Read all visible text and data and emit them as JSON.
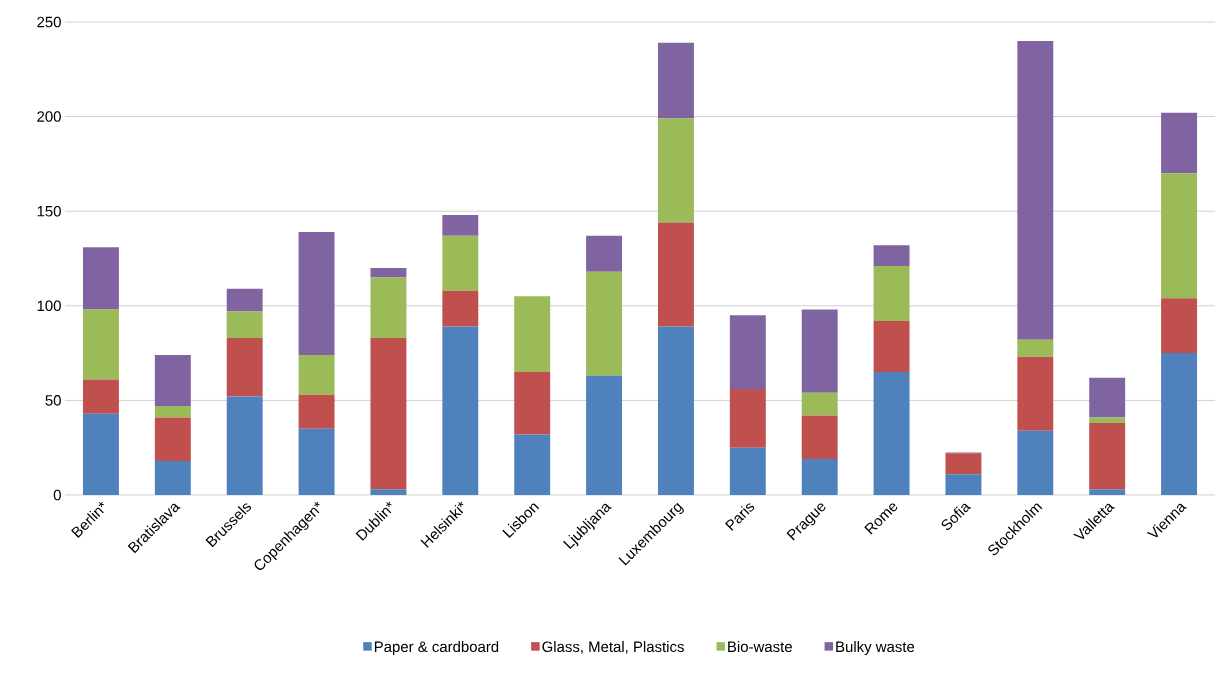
{
  "chart_data": {
    "type": "bar",
    "stacked": true,
    "categories": [
      "Berlin*",
      "Bratislava",
      "Brussels",
      "Copenhagen*",
      "Dublin*",
      "Helsinki*",
      "Lisbon",
      "Ljubljana",
      "Luxembourg",
      "Paris",
      "Prague",
      "Rome",
      "Sofia",
      "Stockholm",
      "Valletta",
      "Vienna"
    ],
    "series": [
      {
        "name": "Paper & cardboard",
        "color": "#4f81bd",
        "values": [
          43,
          18,
          52,
          35,
          3,
          89,
          32,
          63,
          89,
          25,
          19,
          65,
          11,
          34,
          3,
          75
        ]
      },
      {
        "name": "Glass, Metal, Plastics",
        "color": "#c0504d",
        "values": [
          18,
          23,
          31,
          18,
          80,
          19,
          33,
          0,
          55,
          31,
          23,
          27,
          11,
          39,
          35,
          29
        ]
      },
      {
        "name": "Bio-waste",
        "color": "#9bbb59",
        "values": [
          37,
          6,
          14,
          21,
          32,
          29,
          40,
          55,
          55,
          0,
          12,
          29,
          0,
          9,
          3,
          66
        ]
      },
      {
        "name": "Bulky waste",
        "color": "#8064a2",
        "values": [
          33,
          27,
          12,
          65,
          5,
          11,
          0,
          19,
          40,
          39,
          44,
          11,
          0.5,
          158,
          21,
          32
        ]
      }
    ],
    "ylim": [
      0,
      250
    ],
    "yticks": [
      0,
      50,
      100,
      150,
      200,
      250
    ],
    "grid": "y",
    "legend": "bottom"
  }
}
